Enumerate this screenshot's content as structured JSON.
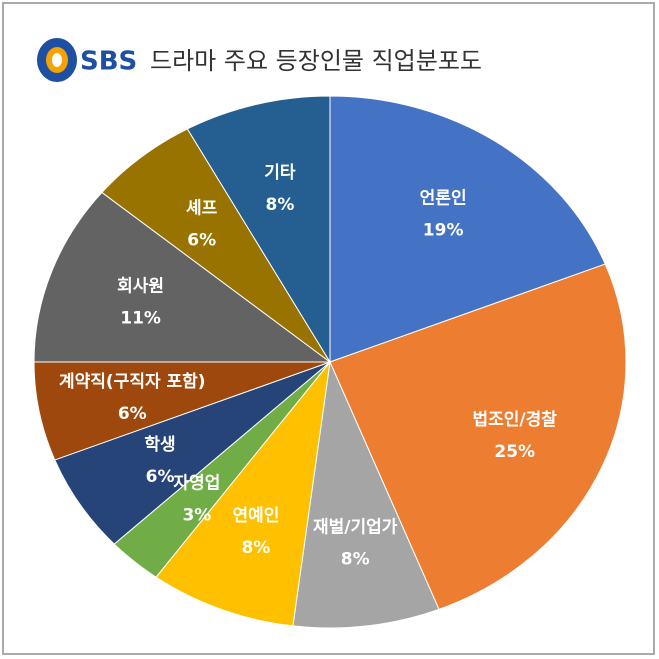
{
  "chart_data": {
    "type": "pie",
    "logo": "SBS",
    "title": "드라마 주요 등장인물 직업분포도",
    "categories": [
      "언론인",
      "법조인/경찰",
      "재벌/기업가",
      "연예인",
      "자영업",
      "학생",
      "계약직(구직자 포함)",
      "회사원",
      "셰프",
      "기타"
    ],
    "values": [
      19,
      25,
      8,
      8,
      3,
      6,
      6,
      11,
      6,
      8
    ],
    "value_labels": [
      "19%",
      "25%",
      "8%",
      "8%",
      "3%",
      "6%",
      "6%",
      "11%",
      "6%",
      "8%"
    ],
    "colors": [
      "#4472c4",
      "#ed7d31",
      "#a5a5a5",
      "#ffc000",
      "#70ad47",
      "#264478",
      "#9e480e",
      "#636363",
      "#997300",
      "#255e91"
    ]
  }
}
